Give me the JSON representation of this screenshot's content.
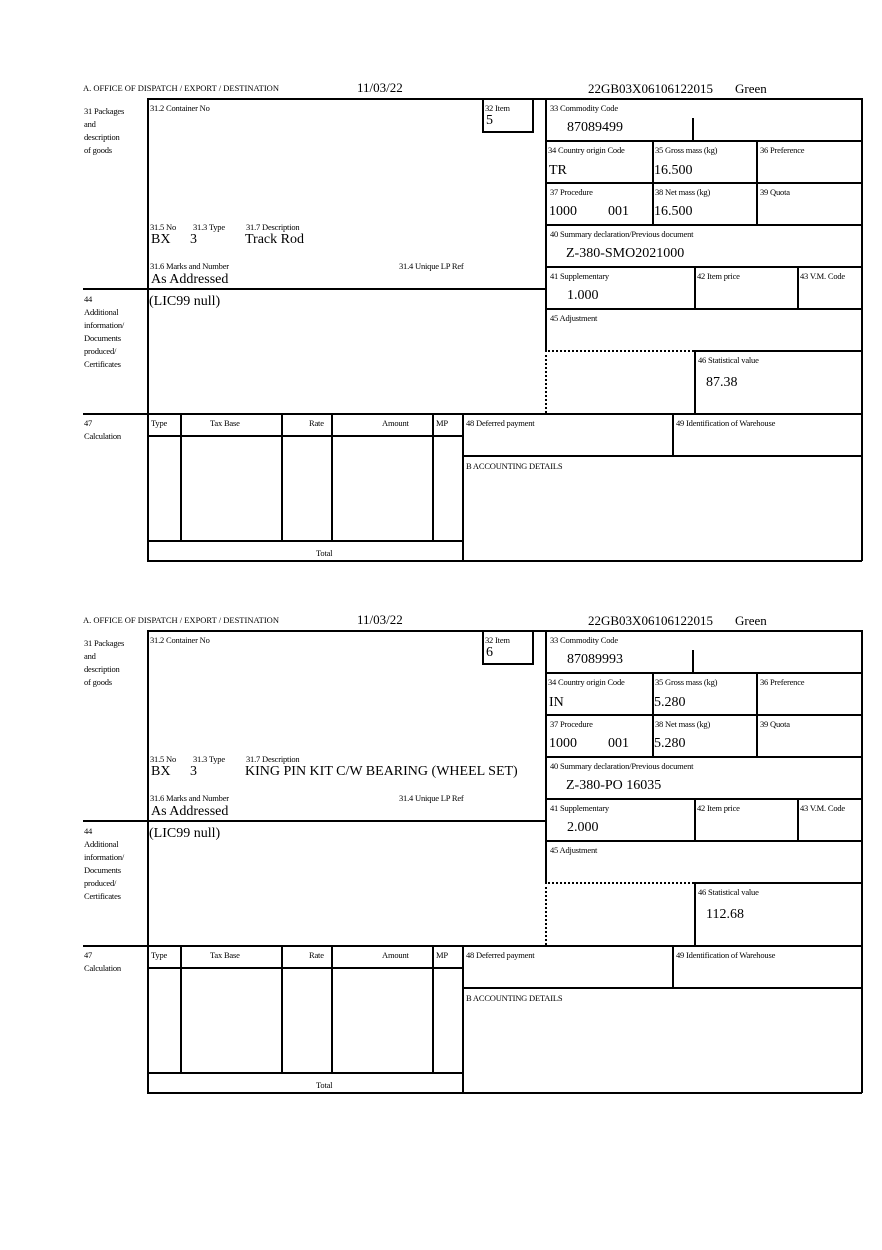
{
  "labels": {
    "office": "A.  OFFICE OF DISPATCH / EXPORT / DESTINATION",
    "packages": "31 Packages\nand\ndescription\nof goods",
    "container": "31.2 Container No",
    "item": "32 Item",
    "commodity": "33 Commodity Code",
    "country": "34 Country origin Code",
    "gross": "35 Gross mass (kg)",
    "preference": "36 Preference",
    "procedure": "37 Procedure",
    "net": "38 Net mass (kg)",
    "quota": "39 Quota",
    "summary": "40 Summary declaration/Previous document",
    "supplementary": "41 Supplementary",
    "item_price": "42 Item price",
    "vm_code": "43 V.M. Code",
    "adjustment": "45 Adjustment",
    "stat_value": "46 Statistical value",
    "no": "31.5 No",
    "type": "31.3 Type",
    "description": "31.7 Description",
    "marks": "31.6 Marks and Number",
    "unique_ref": "31.4 Unique LP Ref",
    "additional": "44\nAdditional\ninformation/\nDocuments\nproduced/\nCertificates",
    "calculation": "47\nCalculation",
    "calc_cols": [
      "Type",
      "Tax Base",
      "Rate",
      "Amount",
      "MP"
    ],
    "total": "Total",
    "deferred": "48 Deferred payment",
    "warehouse": "49 Identification of Warehouse",
    "accounting": "B ACCOUNTING DETAILS"
  },
  "forms": [
    {
      "date": "11/03/22",
      "reference": "22GB03X06106122015",
      "route": "Green",
      "item": "5",
      "commodity_code": "87089499",
      "country": "TR",
      "gross_mass": "16.500",
      "procedure": "1000",
      "procedure_extra": "001",
      "net_mass": "16.500",
      "summary_doc": "Z-380-SMO2021000",
      "supplementary": "1.000",
      "stat_value": "87.38",
      "no": "BX",
      "type": "3",
      "description": "Track Rod",
      "marks": "As Addressed",
      "additional_info": "(LIC99 null)"
    },
    {
      "date": "11/03/22",
      "reference": "22GB03X06106122015",
      "route": "Green",
      "item": "6",
      "commodity_code": "87089993",
      "country": "IN",
      "gross_mass": "5.280",
      "procedure": "1000",
      "procedure_extra": "001",
      "net_mass": "5.280",
      "summary_doc": "Z-380-PO 16035",
      "supplementary": "2.000",
      "stat_value": "112.68",
      "no": "BX",
      "type": "3",
      "description": "KING PIN KIT C/W BEARING (WHEEL SET)",
      "marks": "As Addressed",
      "additional_info": "(LIC99 null)"
    }
  ]
}
